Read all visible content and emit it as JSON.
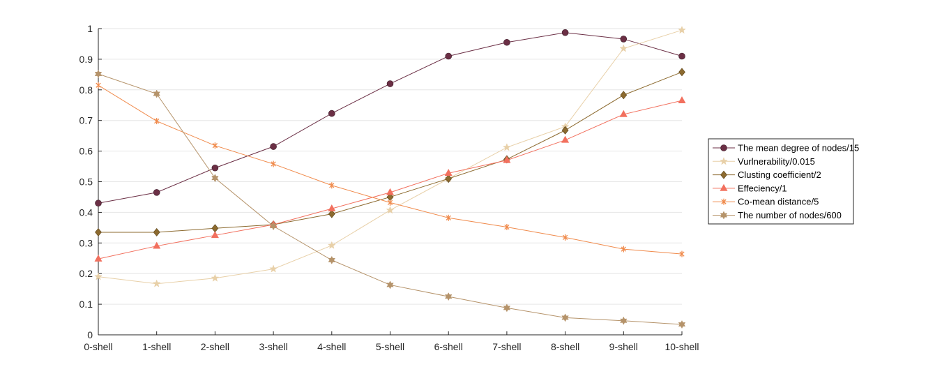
{
  "chart_data": {
    "type": "line",
    "categories": [
      "0-shell",
      "1-shell",
      "2-shell",
      "3-shell",
      "4-shell",
      "5-shell",
      "6-shell",
      "7-shell",
      "8-shell",
      "9-shell",
      "10-shell"
    ],
    "ylim": [
      0,
      1
    ],
    "yticks": [
      "0",
      "0.1",
      "0.2",
      "0.3",
      "0.4",
      "0.5",
      "0.6",
      "0.7",
      "0.8",
      "0.9",
      "1"
    ],
    "grid": "horizontal",
    "legend_position": "right",
    "series": [
      {
        "name": "The mean degree of nodes/15",
        "color": "#6b2f45",
        "marker": "circle",
        "values": [
          0.43,
          0.465,
          0.545,
          0.615,
          0.723,
          0.82,
          0.91,
          0.955,
          0.987,
          0.966,
          0.91
        ]
      },
      {
        "name": "Vurlnerability/0.015",
        "color": "#e8d0a8",
        "marker": "star",
        "values": [
          0.19,
          0.167,
          0.185,
          0.215,
          0.292,
          0.407,
          0.51,
          0.612,
          0.68,
          0.935,
          0.995
        ]
      },
      {
        "name": "Clusting coefficient/2",
        "color": "#8c6a2f",
        "marker": "diamond",
        "values": [
          0.335,
          0.335,
          0.348,
          0.36,
          0.395,
          0.45,
          0.51,
          0.573,
          0.668,
          0.783,
          0.858
        ]
      },
      {
        "name": "Effeciency/1",
        "color": "#f2705e",
        "marker": "triangle",
        "values": [
          0.248,
          0.29,
          0.325,
          0.36,
          0.412,
          0.465,
          0.528,
          0.57,
          0.636,
          0.72,
          0.765
        ]
      },
      {
        "name": "Co-mean distance/5",
        "color": "#f08a4b",
        "marker": "asterisk",
        "values": [
          0.815,
          0.698,
          0.618,
          0.558,
          0.488,
          0.432,
          0.382,
          0.352,
          0.318,
          0.28,
          0.264
        ]
      },
      {
        "name": "The number of nodes/600",
        "color": "#b5936a",
        "marker": "hexagram",
        "values": [
          0.852,
          0.787,
          0.512,
          0.355,
          0.244,
          0.163,
          0.125,
          0.088,
          0.056,
          0.046,
          0.034
        ]
      }
    ]
  }
}
